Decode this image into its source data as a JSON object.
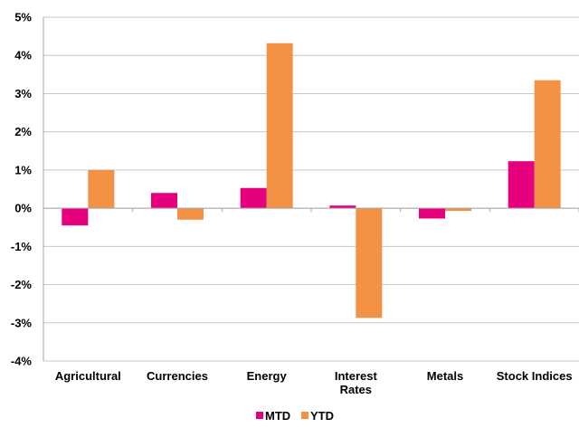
{
  "chart_data": {
    "type": "bar",
    "categories": [
      {
        "lines": [
          "Agricultural"
        ]
      },
      {
        "lines": [
          "Currencies"
        ]
      },
      {
        "lines": [
          "Energy"
        ]
      },
      {
        "lines": [
          "Interest",
          "Rates"
        ]
      },
      {
        "lines": [
          "Metals"
        ]
      },
      {
        "lines": [
          "Stock Indices"
        ]
      }
    ],
    "series": [
      {
        "name": "MTD",
        "color": "#E6007E",
        "values": [
          -0.45,
          0.4,
          0.53,
          0.07,
          -0.27,
          1.23
        ]
      },
      {
        "name": "YTD",
        "color": "#F39245",
        "values": [
          1.0,
          -0.3,
          4.32,
          -2.87,
          -0.07,
          3.35
        ]
      }
    ],
    "ylim": [
      -4,
      5
    ],
    "yticks": [
      {
        "value": 5,
        "label": "5%"
      },
      {
        "value": 4,
        "label": "4%"
      },
      {
        "value": 3,
        "label": "3%"
      },
      {
        "value": 2,
        "label": "2%"
      },
      {
        "value": 1,
        "label": "1%"
      },
      {
        "value": 0,
        "label": "0%"
      },
      {
        "value": -1,
        "label": "-1%"
      },
      {
        "value": -2,
        "label": "-2%"
      },
      {
        "value": -3,
        "label": "-3%"
      },
      {
        "value": -4,
        "label": "-4%"
      }
    ],
    "grid": true,
    "legend_position": "bottom-center"
  }
}
